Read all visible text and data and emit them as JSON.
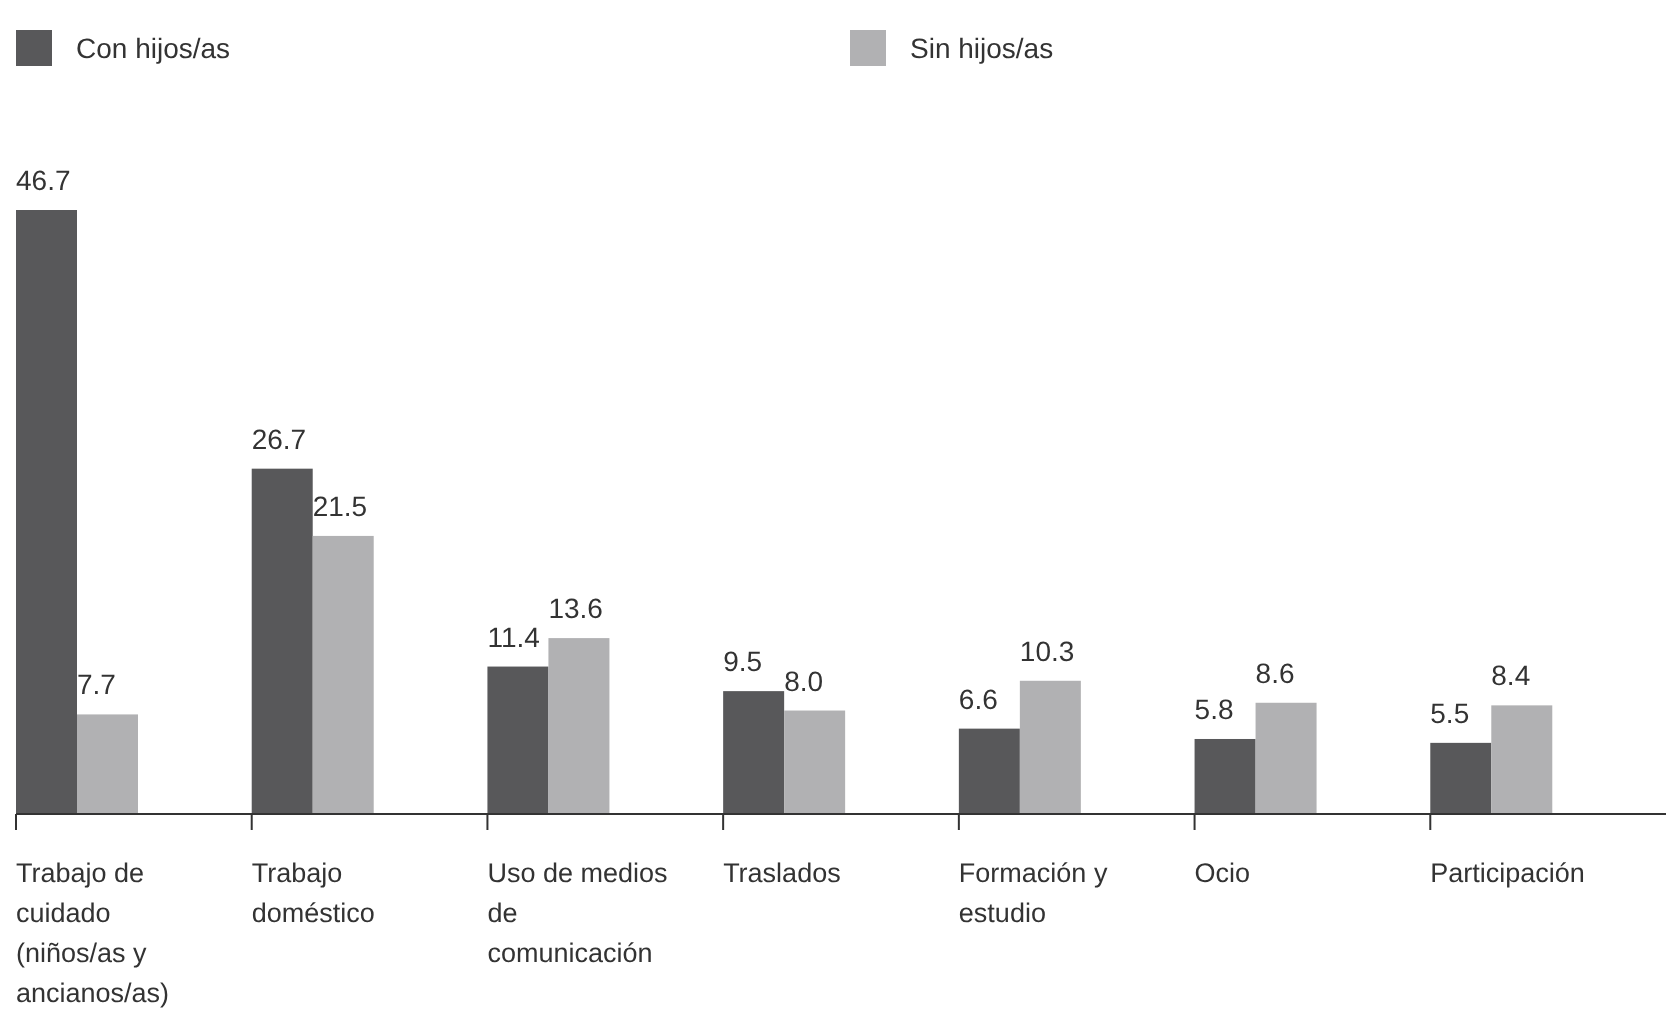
{
  "chart_data": {
    "type": "bar",
    "categories": [
      "Trabajo de cuidado (niños/as y ancianos/as)",
      "Trabajo doméstico",
      "Uso de medios de comunicación",
      "Traslados",
      "Formación y estudio",
      "Ocio",
      "Participación"
    ],
    "series": [
      {
        "name": "Con hijos/as",
        "color": "#58585a",
        "values": [
          46.7,
          26.7,
          11.4,
          9.5,
          6.6,
          5.8,
          5.5
        ],
        "value_labels": [
          "46.7",
          "26.7",
          "11.4",
          "9.5",
          "6.6",
          "5.8",
          "5.5"
        ]
      },
      {
        "name": "Sin hijos/as",
        "color": "#b1b1b3",
        "values": [
          7.7,
          21.5,
          13.6,
          8.0,
          10.3,
          8.6,
          8.4
        ],
        "value_labels": [
          "7.7",
          "21.5",
          "13.6",
          "8.0",
          "10.3",
          "8.6",
          "8.4"
        ]
      }
    ],
    "legend": "top left",
    "grid": false
  }
}
